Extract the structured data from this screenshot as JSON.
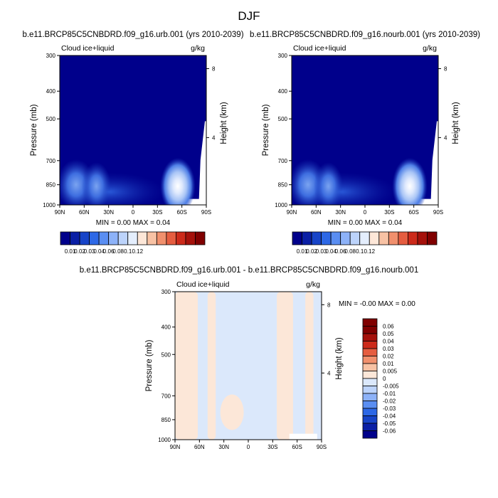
{
  "title": "DJF",
  "colors": {
    "sequential": [
      "#00008b",
      "#0a1fa5",
      "#1744c8",
      "#2d68e6",
      "#5a8ef2",
      "#8db2f8",
      "#bcd3fb",
      "#e4eefd",
      "#fde7d8",
      "#f8c2a4",
      "#f1906d",
      "#e55d40",
      "#cc2a1a",
      "#a5110b",
      "#800000"
    ],
    "diverging": [
      "#00008b",
      "#0a1fa5",
      "#1744c8",
      "#2d68e6",
      "#5a8ef2",
      "#8db2f8",
      "#bcd3fb",
      "#dbe8fb",
      "#fce7d8",
      "#f8c2a4",
      "#f1906d",
      "#e55d40",
      "#cc2a1a",
      "#a5110b",
      "#800000"
    ]
  },
  "chart_data": [
    {
      "type": "heatmap",
      "title": "b.e11.BRCP85C5CNBDRD.f09_g16.urb.001 (yrs 2010-2039)",
      "left_label": "Cloud ice+liquid",
      "right_label": "g/kg",
      "xlabel": "",
      "ylabel": "Pressure (mb)",
      "y2label": "Height (km)",
      "x_ticks": [
        "90N",
        "60N",
        "30N",
        "0",
        "30S",
        "60S",
        "90S"
      ],
      "y_ticks": [
        "300",
        "400",
        "500",
        "700",
        "850",
        "1000"
      ],
      "y2_ticks": [
        "8",
        "4"
      ],
      "stats": "MIN =   0.00   MAX =   0.04",
      "colorbar_labels": [
        "0.01",
        "0.02",
        "0.03",
        "0.04",
        "0.06",
        "0.08",
        "0.1",
        "0.12"
      ],
      "maxima": [
        {
          "lat": 55,
          "pressure": 860,
          "value": 0.04
        },
        {
          "lat": 70,
          "pressure": 850,
          "value": 0.02
        },
        {
          "lat": 45,
          "pressure": 860,
          "value": 0.015
        }
      ]
    },
    {
      "type": "heatmap",
      "title": "b.e11.BRCP85C5CNBDRD.f09_g16.nourb.001 (yrs 2010-2039)",
      "left_label": "Cloud ice+liquid",
      "right_label": "g/kg",
      "xlabel": "",
      "ylabel": "Pressure (mb)",
      "y2label": "Height (km)",
      "x_ticks": [
        "90N",
        "60N",
        "30N",
        "0",
        "30S",
        "60S",
        "90S"
      ],
      "y_ticks": [
        "300",
        "400",
        "500",
        "700",
        "850",
        "1000"
      ],
      "y2_ticks": [
        "8",
        "4"
      ],
      "stats": "MIN =   0.00   MAX =   0.04",
      "colorbar_labels": [
        "0.01",
        "0.02",
        "0.03",
        "0.04",
        "0.06",
        "0.08",
        "0.1",
        "0.12"
      ],
      "maxima": [
        {
          "lat": 55,
          "pressure": 860,
          "value": 0.04
        },
        {
          "lat": 70,
          "pressure": 850,
          "value": 0.02
        },
        {
          "lat": 45,
          "pressure": 860,
          "value": 0.015
        }
      ]
    },
    {
      "type": "heatmap",
      "title": "b.e11.BRCP85C5CNBDRD.f09_g16.urb.001 - b.e11.BRCP85C5CNBDRD.f09_g16.nourb.001",
      "left_label": "Cloud ice+liquid",
      "right_label": "g/kg",
      "xlabel": "",
      "ylabel": "Pressure (mb)",
      "y2label": "Height (km)",
      "x_ticks": [
        "90N",
        "60N",
        "30N",
        "0",
        "30S",
        "60S",
        "90S"
      ],
      "y_ticks": [
        "300",
        "400",
        "500",
        "700",
        "850",
        "1000"
      ],
      "y2_ticks": [
        "8",
        "4"
      ],
      "stats": "MIN =  -0.00   MAX =   0.00",
      "colorbar_labels": [
        "0.06",
        "0.05",
        "0.04",
        "0.03",
        "0.02",
        "0.01",
        "0.005",
        "0",
        "-0.005",
        "-0.01",
        "-0.02",
        "-0.03",
        "-0.04",
        "-0.05",
        "-0.06"
      ],
      "positive_bands_lat": [
        [
          -80,
          -70
        ],
        [
          -55,
          -35
        ],
        [
          40,
          50
        ],
        [
          62,
          90
        ]
      ],
      "negative_bands_lat": [
        [
          -90,
          -80
        ],
        [
          -70,
          -55
        ],
        [
          -35,
          40
        ],
        [
          50,
          62
        ]
      ]
    }
  ]
}
